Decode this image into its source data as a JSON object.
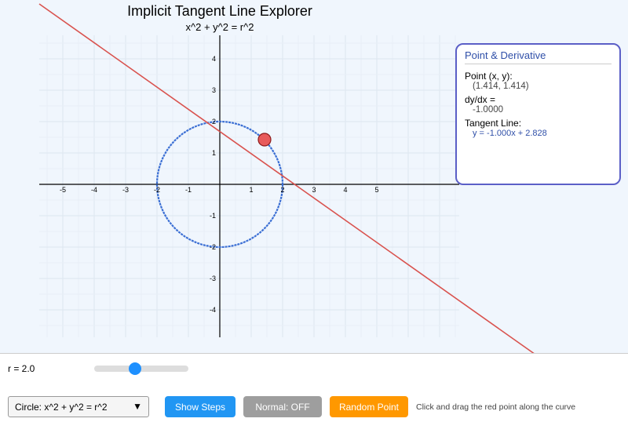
{
  "header": {
    "title": "Implicit Tangent Line Explorer",
    "subtitle": "x^2 + y^2 = r^2"
  },
  "plot": {
    "x_tick_labels": [
      "-5",
      "-4",
      "-3",
      "-2",
      "-1",
      "1",
      "2",
      "3",
      "4",
      "5"
    ],
    "y_tick_labels": [
      "4",
      "3",
      "2",
      "1",
      "-1",
      "-2",
      "-3",
      "-4"
    ]
  },
  "info_panel": {
    "title": "Point & Derivative",
    "point_label": "Point (x, y):",
    "point_value": "(1.414, 1.414)",
    "derivative_label": "dy/dx =",
    "derivative_value": "-1.0000",
    "tangent_label": "Tangent Line:",
    "tangent_value": "y = -1.000x + 2.828"
  },
  "controls": {
    "slider_label": "r = 2.0",
    "curve_select": "Circle: x^2 + y^2 = r^2",
    "buttons": [
      "Show Steps",
      "Normal: OFF",
      "Random Point"
    ],
    "hint": "Click and drag the red point along the curve"
  }
}
